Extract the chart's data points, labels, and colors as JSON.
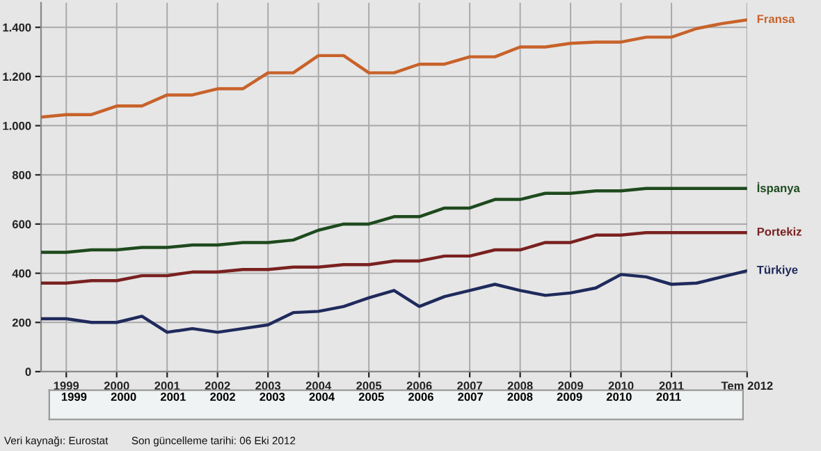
{
  "chart_data": {
    "type": "line",
    "x": [
      1998.5,
      1999,
      1999.5,
      2000,
      2000.5,
      2001,
      2001.5,
      2002,
      2002.5,
      2003,
      2003.5,
      2004,
      2004.5,
      2005,
      2005.5,
      2006,
      2006.5,
      2007,
      2007.5,
      2008,
      2008.5,
      2009,
      2009.5,
      2010,
      2010.5,
      2011,
      2011.5,
      2012,
      2012.5
    ],
    "series": [
      {
        "name": "Fransa",
        "color": "#c8622a",
        "values": [
          1035,
          1045,
          1045,
          1080,
          1080,
          1125,
          1125,
          1150,
          1150,
          1215,
          1215,
          1285,
          1285,
          1215,
          1215,
          1250,
          1250,
          1280,
          1280,
          1320,
          1320,
          1335,
          1340,
          1340,
          1360,
          1360,
          1395,
          1415,
          1430
        ]
      },
      {
        "name": "İspanya",
        "color": "#1e4a1e",
        "values": [
          485,
          485,
          495,
          495,
          505,
          505,
          515,
          515,
          525,
          525,
          535,
          575,
          600,
          600,
          630,
          630,
          665,
          665,
          700,
          700,
          725,
          725,
          735,
          735,
          745,
          745,
          745,
          745,
          745
        ]
      },
      {
        "name": "Portekiz",
        "color": "#7a2020",
        "values": [
          360,
          360,
          370,
          370,
          390,
          390,
          405,
          405,
          415,
          415,
          425,
          425,
          435,
          435,
          450,
          450,
          470,
          470,
          495,
          495,
          525,
          525,
          555,
          555,
          565,
          565,
          565,
          565,
          565
        ]
      },
      {
        "name": "Türkiye",
        "color": "#1f2a5c",
        "values": [
          215,
          215,
          200,
          200,
          225,
          160,
          175,
          160,
          175,
          190,
          240,
          245,
          265,
          300,
          330,
          265,
          305,
          330,
          355,
          330,
          310,
          320,
          340,
          395,
          385,
          355,
          360,
          385,
          410
        ]
      }
    ],
    "xlim": [
      1998.5,
      2012.5
    ],
    "xticks": [
      {
        "value": 1999,
        "label": "1999"
      },
      {
        "value": 2000,
        "label": "2000"
      },
      {
        "value": 2001,
        "label": "2001"
      },
      {
        "value": 2002,
        "label": "2002"
      },
      {
        "value": 2003,
        "label": "2003"
      },
      {
        "value": 2004,
        "label": "2004"
      },
      {
        "value": 2005,
        "label": "2005"
      },
      {
        "value": 2006,
        "label": "2006"
      },
      {
        "value": 2007,
        "label": "2007"
      },
      {
        "value": 2008,
        "label": "2008"
      },
      {
        "value": 2009,
        "label": "2009"
      },
      {
        "value": 2010,
        "label": "2010"
      },
      {
        "value": 2011,
        "label": "2011"
      },
      {
        "value": 2012.5,
        "label": "Tem 2012"
      }
    ],
    "x2lim": [
      1998.5,
      2012.5
    ],
    "x2ticks": [
      {
        "value": 1999,
        "label": "1999"
      },
      {
        "value": 2000,
        "label": "2000"
      },
      {
        "value": 2001,
        "label": "2001"
      },
      {
        "value": 2002,
        "label": "2002"
      },
      {
        "value": 2003,
        "label": "2003"
      },
      {
        "value": 2004,
        "label": "2004"
      },
      {
        "value": 2005,
        "label": "2005"
      },
      {
        "value": 2006,
        "label": "2006"
      },
      {
        "value": 2007,
        "label": "2007"
      },
      {
        "value": 2008,
        "label": "2008"
      },
      {
        "value": 2009,
        "label": "2009"
      },
      {
        "value": 2010,
        "label": "2010"
      },
      {
        "value": 2011,
        "label": "2011"
      }
    ],
    "ylim": [
      0,
      1500
    ],
    "yticks": [
      0,
      200,
      400,
      600,
      800,
      {
        "value": 1000,
        "label": "1.000"
      },
      {
        "value": 1200,
        "label": "1.200"
      },
      {
        "value": 1400,
        "label": "1.400"
      }
    ],
    "grid": true,
    "legend": false,
    "marker": "none",
    "line_style": "solid",
    "annotations": [
      "Veri kaynağı: Eurostat",
      "Son güncelleme tarihi: 06 Eki 2012"
    ]
  }
}
